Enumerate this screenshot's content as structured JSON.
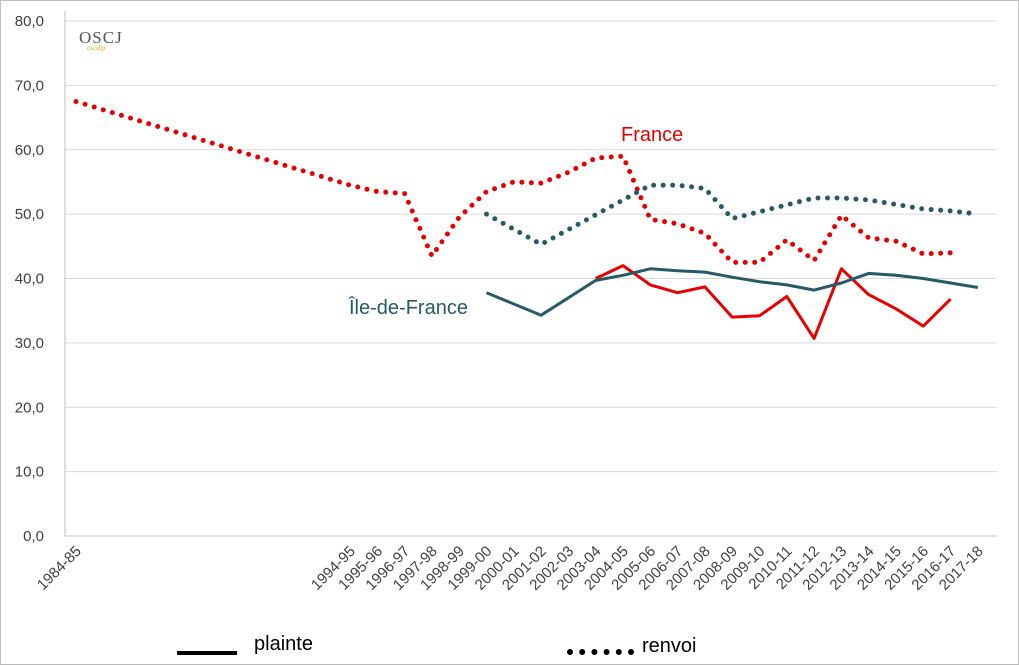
{
  "logo": {
    "main": "OSCJ",
    "sub": "oscdip"
  },
  "chart_data": {
    "type": "line",
    "categories": [
      "1984-85",
      "1994-95",
      "1995-96",
      "1996-97",
      "1997-98",
      "1998-99",
      "1999-00",
      "2000-01",
      "2001-02",
      "2002-03",
      "2003-04",
      "2004-05",
      "2005-06",
      "2006-07",
      "2007-08",
      "2008-09",
      "2009-10",
      "2010-11",
      "2011-12",
      "2012-13",
      "2013-14",
      "2014-15",
      "2015-16",
      "2016-17",
      "2017-18"
    ],
    "ylim": [
      0,
      80
    ],
    "yticks": [
      "0,0",
      "10,0",
      "20,0",
      "30,0",
      "40,0",
      "50,0",
      "60,0",
      "70,0",
      "80,0"
    ],
    "grid": true,
    "series": [
      {
        "name": "France",
        "kind": "renvoi",
        "style": "dotted",
        "color": "#e80000",
        "values": [
          67.5,
          54.5,
          53.5,
          53.2,
          43.5,
          49.5,
          53.5,
          55.0,
          54.8,
          56.5,
          58.7,
          59.0,
          49.2,
          48.5,
          47.0,
          42.5,
          42.5,
          46.0,
          42.8,
          49.8,
          46.3,
          45.8,
          43.8,
          44.0,
          null
        ]
      },
      {
        "name": "France",
        "kind": "plainte",
        "style": "solid",
        "color": "#e80000",
        "values": [
          null,
          null,
          null,
          null,
          null,
          null,
          null,
          null,
          null,
          null,
          40.0,
          42.0,
          39.0,
          37.8,
          38.7,
          34.0,
          34.2,
          37.2,
          30.7,
          41.5,
          37.5,
          35.3,
          32.6,
          36.8,
          null
        ]
      },
      {
        "name": "Île-de-France",
        "kind": "renvoi",
        "style": "dotted",
        "color": "#275a67",
        "values": [
          null,
          null,
          null,
          null,
          null,
          null,
          50.0,
          null,
          45.3,
          null,
          null,
          null,
          54.5,
          54.5,
          54.0,
          49.3,
          null,
          null,
          52.5,
          52.5,
          52.2,
          51.5,
          50.8,
          50.5,
          50.0
        ]
      },
      {
        "name": "Île-de-France",
        "kind": "plainte",
        "style": "solid",
        "color": "#275a67",
        "values": [
          null,
          null,
          null,
          null,
          null,
          null,
          37.8,
          null,
          34.3,
          null,
          39.7,
          40.5,
          41.5,
          41.2,
          41.0,
          40.2,
          39.5,
          39.0,
          38.2,
          39.3,
          40.8,
          40.5,
          40.0,
          39.3,
          38.6
        ]
      }
    ],
    "annotations": [
      {
        "text": "France",
        "color": "#e80000"
      },
      {
        "text": "Île-de-France",
        "color": "#275a67"
      }
    ],
    "legend": {
      "position": "bottom",
      "items": [
        {
          "label": "plainte",
          "style": "solid"
        },
        {
          "label": "renvoi",
          "style": "dotted"
        }
      ]
    }
  }
}
